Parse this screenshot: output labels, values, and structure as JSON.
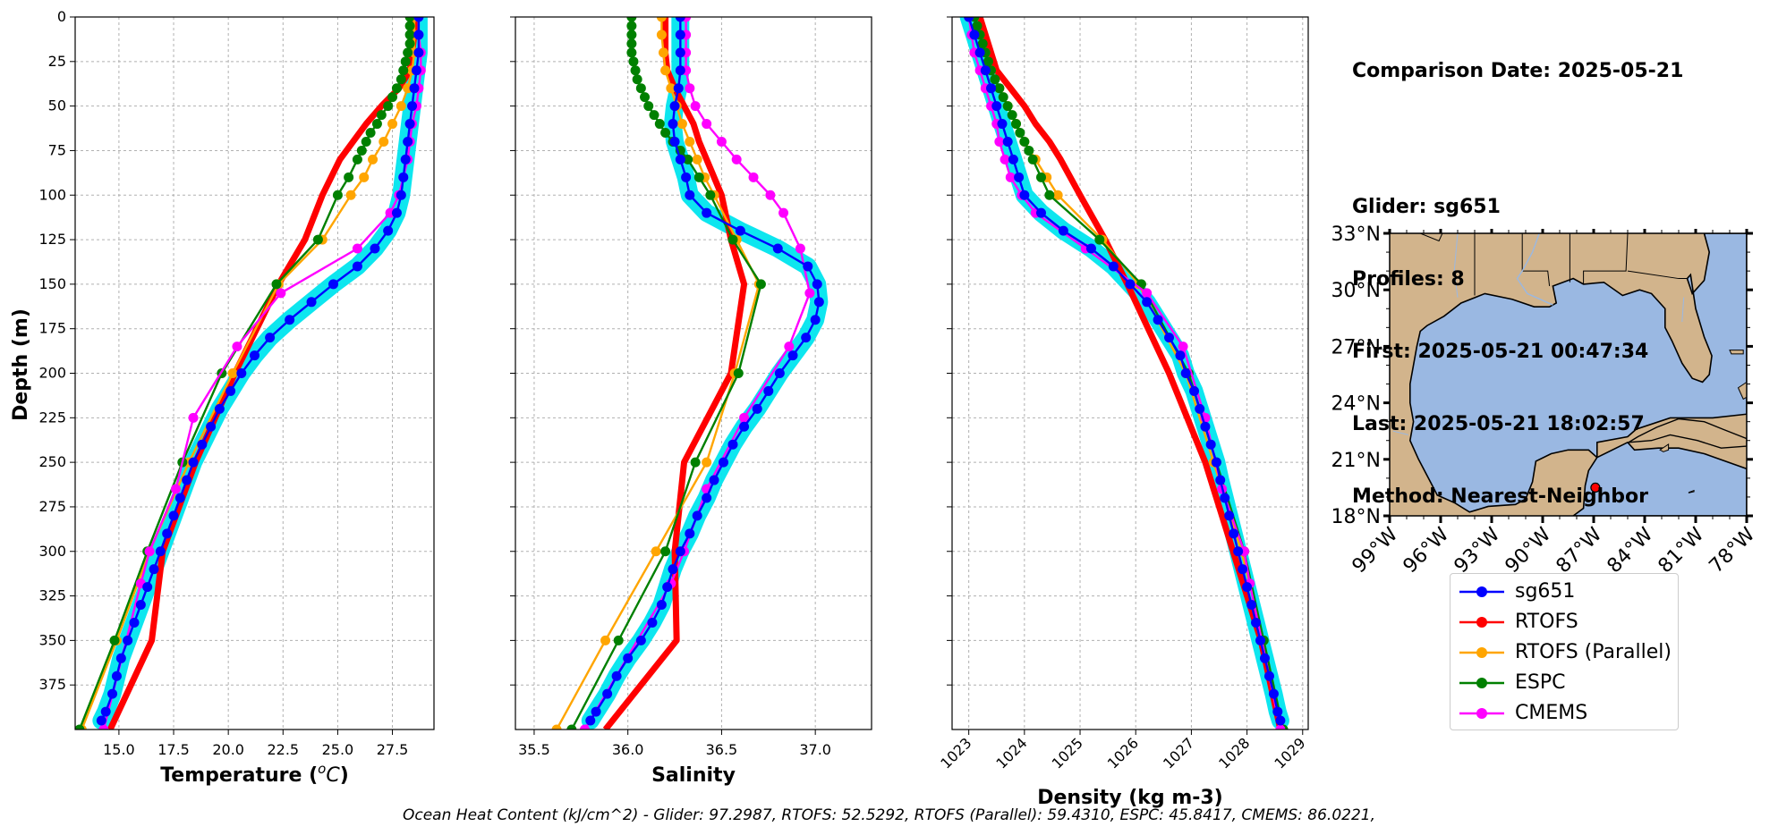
{
  "info": {
    "comparison_date": "Comparison Date: 2025-05-21",
    "glider": "Glider: sg651",
    "profiles": "Profiles: 8",
    "first": "First: 2025-05-21 00:47:34",
    "last": "Last: 2025-05-21 18:02:57",
    "method": "Method: Nearest-Neighbor"
  },
  "ohc_text": "Ocean Heat Content (kJ/cm^2) - Glider: 97.2987,  RTOFS: 52.5292,  RTOFS (Parallel): 59.4310,  ESPC: 45.8417,  CMEMS: 86.0221,",
  "colors": {
    "sg651": "#0000ff",
    "sg651_band": "#00e5ee",
    "RTOFS": "#ff0000",
    "RTOFS (Parallel)": "#ffa500",
    "ESPC": "#008000",
    "CMEMS": "#ff00ff",
    "land": "#d2b48c",
    "ocean": "#9ab8e2",
    "grid": "#b0b0b0"
  },
  "legend": [
    "sg651",
    "RTOFS",
    "RTOFS (Parallel)",
    "ESPC",
    "CMEMS"
  ],
  "chart_data": [
    {
      "type": "line",
      "xlabel": "Temperature ($^oC$)",
      "ylabel": "Depth (m)",
      "xlim": [
        13.0,
        29.4
      ],
      "ylim": [
        400,
        0
      ],
      "xticks": [
        "15.0",
        "17.5",
        "20.0",
        "22.5",
        "25.0",
        "27.5"
      ],
      "yticks": [
        "0",
        "25",
        "50",
        "75",
        "100",
        "125",
        "150",
        "175",
        "200",
        "225",
        "250",
        "275",
        "300",
        "325",
        "350",
        "375"
      ],
      "grid": true,
      "series": [
        {
          "name": "sg651",
          "depth": [
            0,
            10,
            20,
            30,
            40,
            50,
            60,
            70,
            80,
            90,
            100,
            110,
            120,
            130,
            140,
            150,
            160,
            170,
            180,
            190,
            200,
            210,
            220,
            230,
            240,
            250,
            260,
            270,
            280,
            290,
            300,
            310,
            320,
            330,
            340,
            350,
            360,
            370,
            380,
            390,
            395
          ],
          "values": [
            28.7,
            28.7,
            28.7,
            28.6,
            28.5,
            28.4,
            28.3,
            28.2,
            28.1,
            28.0,
            27.9,
            27.7,
            27.3,
            26.7,
            25.9,
            24.8,
            23.8,
            22.8,
            21.9,
            21.2,
            20.6,
            20.1,
            19.6,
            19.2,
            18.8,
            18.4,
            18.1,
            17.8,
            17.5,
            17.2,
            16.9,
            16.6,
            16.3,
            16.0,
            15.7,
            15.4,
            15.1,
            14.9,
            14.7,
            14.4,
            14.2
          ]
        },
        {
          "name": "RTOFS",
          "depth": [
            0,
            10,
            20,
            30,
            40,
            50,
            60,
            70,
            80,
            100,
            125,
            150,
            200,
            250,
            300,
            350,
            400
          ],
          "values": [
            28.5,
            28.5,
            28.4,
            28.3,
            27.8,
            27.0,
            26.3,
            25.7,
            25.1,
            24.3,
            23.5,
            22.3,
            20.3,
            18.5,
            17.0,
            16.5,
            14.6
          ]
        },
        {
          "name": "RTOFS (Parallel)",
          "depth": [
            0,
            10,
            20,
            30,
            40,
            50,
            60,
            70,
            80,
            90,
            100,
            125,
            150,
            200,
            250,
            300,
            350,
            400
          ],
          "values": [
            28.5,
            28.5,
            28.5,
            28.4,
            28.2,
            27.9,
            27.5,
            27.1,
            26.6,
            26.2,
            25.6,
            24.3,
            22.3,
            20.2,
            18.2,
            16.4,
            14.9,
            13.3
          ]
        },
        {
          "name": "ESPC",
          "depth": [
            0,
            5,
            10,
            15,
            20,
            25,
            30,
            35,
            40,
            45,
            50,
            55,
            60,
            65,
            70,
            75,
            80,
            90,
            100,
            125,
            150,
            200,
            250,
            300,
            350,
            400
          ],
          "values": [
            28.3,
            28.3,
            28.3,
            28.3,
            28.2,
            28.1,
            28.0,
            27.9,
            27.7,
            27.5,
            27.3,
            27.0,
            26.8,
            26.5,
            26.3,
            26.1,
            25.9,
            25.5,
            25.0,
            24.1,
            22.2,
            19.7,
            17.9,
            16.3,
            14.8,
            13.2
          ]
        },
        {
          "name": "CMEMS",
          "depth": [
            0,
            10,
            20,
            30,
            40,
            50,
            60,
            70,
            80,
            90,
            100,
            110,
            130,
            155,
            185,
            225,
            265,
            300,
            318,
            400
          ],
          "values": [
            28.7,
            28.7,
            28.8,
            28.8,
            28.7,
            28.6,
            28.4,
            28.3,
            28.2,
            28.0,
            27.8,
            27.4,
            25.9,
            22.4,
            20.4,
            18.4,
            17.6,
            16.4,
            16.0,
            14.3
          ]
        }
      ]
    },
    {
      "type": "line",
      "xlabel": "Salinity",
      "xlim": [
        35.4,
        37.3
      ],
      "ylim": [
        400,
        0
      ],
      "xticks": [
        "35.5",
        "36.0",
        "36.5",
        "37.0"
      ],
      "grid": true,
      "series": [
        {
          "name": "sg651",
          "depth": [
            0,
            10,
            20,
            30,
            40,
            50,
            60,
            70,
            80,
            90,
            100,
            110,
            120,
            130,
            140,
            150,
            160,
            170,
            180,
            190,
            200,
            210,
            220,
            230,
            240,
            250,
            260,
            270,
            280,
            290,
            300,
            310,
            320,
            330,
            340,
            350,
            360,
            370,
            380,
            390,
            395
          ],
          "values": [
            36.28,
            36.28,
            36.28,
            36.28,
            36.27,
            36.25,
            36.24,
            36.25,
            36.28,
            36.31,
            36.33,
            36.42,
            36.6,
            36.8,
            36.96,
            37.01,
            37.02,
            37.0,
            36.95,
            36.88,
            36.81,
            36.75,
            36.69,
            36.62,
            36.56,
            36.51,
            36.46,
            36.42,
            36.37,
            36.33,
            36.28,
            36.24,
            36.21,
            36.18,
            36.13,
            36.07,
            36.0,
            35.94,
            35.89,
            35.83,
            35.8
          ]
        },
        {
          "name": "RTOFS",
          "depth": [
            0,
            10,
            20,
            30,
            40,
            50,
            60,
            70,
            80,
            100,
            125,
            150,
            200,
            250,
            300,
            350,
            400
          ],
          "values": [
            36.2,
            36.2,
            36.2,
            36.21,
            36.25,
            36.3,
            36.35,
            36.38,
            36.42,
            36.5,
            36.55,
            36.62,
            36.55,
            36.3,
            36.25,
            36.26,
            35.88
          ]
        },
        {
          "name": "RTOFS (Parallel)",
          "depth": [
            0,
            10,
            20,
            30,
            40,
            50,
            60,
            70,
            80,
            90,
            100,
            125,
            150,
            200,
            250,
            300,
            350,
            400
          ],
          "values": [
            36.18,
            36.18,
            36.19,
            36.2,
            36.23,
            36.26,
            36.29,
            36.33,
            36.37,
            36.41,
            36.46,
            36.58,
            36.7,
            36.57,
            36.42,
            36.15,
            35.88,
            35.62
          ]
        },
        {
          "name": "ESPC",
          "depth": [
            0,
            5,
            10,
            15,
            20,
            25,
            30,
            35,
            40,
            45,
            50,
            55,
            60,
            65,
            70,
            75,
            80,
            90,
            100,
            125,
            150,
            200,
            250,
            300,
            350,
            400
          ],
          "values": [
            36.02,
            36.02,
            36.02,
            36.02,
            36.02,
            36.03,
            36.04,
            36.05,
            36.07,
            36.09,
            36.11,
            36.14,
            36.17,
            36.2,
            36.24,
            36.28,
            36.32,
            36.38,
            36.44,
            36.56,
            36.71,
            36.59,
            36.36,
            36.2,
            35.95,
            35.7
          ]
        },
        {
          "name": "CMEMS",
          "depth": [
            0,
            10,
            20,
            30,
            40,
            50,
            60,
            70,
            80,
            90,
            100,
            110,
            130,
            155,
            185,
            225,
            265,
            300,
            318,
            400
          ],
          "values": [
            36.31,
            36.31,
            36.31,
            36.31,
            36.33,
            36.36,
            36.42,
            36.5,
            36.58,
            36.67,
            36.76,
            36.83,
            36.92,
            36.97,
            36.86,
            36.62,
            36.42,
            36.3,
            36.23,
            35.77
          ]
        }
      ]
    },
    {
      "type": "line",
      "xlabel": "Density (kg m-3)",
      "xlim": [
        1022.7,
        1029.1
      ],
      "ylim": [
        400,
        0
      ],
      "xticks": [
        "1023",
        "1024",
        "1025",
        "1026",
        "1027",
        "1028",
        "1029"
      ],
      "grid": true,
      "series": [
        {
          "name": "sg651",
          "depth": [
            0,
            10,
            20,
            30,
            40,
            50,
            60,
            70,
            80,
            90,
            100,
            110,
            120,
            130,
            140,
            150,
            160,
            170,
            180,
            190,
            200,
            210,
            220,
            230,
            240,
            250,
            260,
            270,
            280,
            290,
            300,
            310,
            320,
            330,
            340,
            350,
            360,
            370,
            380,
            390,
            395
          ],
          "values": [
            1023.0,
            1023.1,
            1023.2,
            1023.3,
            1023.4,
            1023.5,
            1023.6,
            1023.7,
            1023.8,
            1023.9,
            1024.0,
            1024.3,
            1024.7,
            1025.2,
            1025.6,
            1025.9,
            1026.2,
            1026.4,
            1026.6,
            1026.8,
            1026.9,
            1027.05,
            1027.15,
            1027.25,
            1027.35,
            1027.45,
            1027.52,
            1027.6,
            1027.68,
            1027.76,
            1027.84,
            1027.92,
            1028.0,
            1028.08,
            1028.16,
            1028.24,
            1028.32,
            1028.4,
            1028.48,
            1028.55,
            1028.6
          ]
        },
        {
          "name": "RTOFS",
          "depth": [
            0,
            10,
            20,
            30,
            40,
            50,
            60,
            70,
            80,
            100,
            125,
            150,
            200,
            250,
            300,
            350,
            400
          ],
          "values": [
            1023.2,
            1023.3,
            1023.4,
            1023.5,
            1023.75,
            1024.0,
            1024.2,
            1024.45,
            1024.65,
            1025.0,
            1025.45,
            1025.85,
            1026.6,
            1027.25,
            1027.75,
            1028.25,
            1028.6
          ]
        },
        {
          "name": "RTOFS (Parallel)",
          "depth": [
            0,
            10,
            20,
            30,
            40,
            50,
            60,
            70,
            80,
            90,
            100,
            125,
            150,
            200,
            250,
            300,
            350,
            400
          ],
          "values": [
            1023.1,
            1023.2,
            1023.3,
            1023.4,
            1023.55,
            1023.7,
            1023.85,
            1024.0,
            1024.2,
            1024.4,
            1024.6,
            1025.4,
            1026.05,
            1026.9,
            1027.4,
            1027.9,
            1028.3,
            1028.65
          ]
        },
        {
          "name": "ESPC",
          "depth": [
            0,
            5,
            10,
            15,
            20,
            25,
            30,
            35,
            40,
            45,
            50,
            55,
            60,
            65,
            70,
            75,
            80,
            90,
            100,
            125,
            150,
            200,
            250,
            300,
            350,
            400
          ],
          "values": [
            1023.1,
            1023.15,
            1023.2,
            1023.25,
            1023.3,
            1023.35,
            1023.4,
            1023.47,
            1023.55,
            1023.62,
            1023.7,
            1023.78,
            1023.85,
            1023.92,
            1024.0,
            1024.08,
            1024.15,
            1024.3,
            1024.45,
            1025.35,
            1026.1,
            1026.95,
            1027.45,
            1027.95,
            1028.3,
            1028.65
          ]
        },
        {
          "name": "CMEMS",
          "depth": [
            0,
            10,
            20,
            30,
            40,
            50,
            60,
            70,
            80,
            90,
            100,
            110,
            130,
            155,
            185,
            225,
            265,
            300,
            318,
            400
          ],
          "values": [
            1023.0,
            1023.05,
            1023.1,
            1023.2,
            1023.3,
            1023.4,
            1023.5,
            1023.55,
            1023.65,
            1023.75,
            1023.95,
            1024.2,
            1025.1,
            1026.2,
            1026.85,
            1027.25,
            1027.55,
            1027.95,
            1028.05,
            1028.6
          ]
        }
      ]
    }
  ],
  "map": {
    "lon_range": [
      -99,
      -78
    ],
    "lat_range": [
      18,
      33
    ],
    "xticks": [
      "99°W",
      "96°W",
      "93°W",
      "90°W",
      "87°W",
      "84°W",
      "81°W",
      "78°W"
    ],
    "yticks": [
      "33°N",
      "30°N",
      "27°N",
      "24°N",
      "21°N",
      "18°N"
    ],
    "glider_location": {
      "lon": -86.9,
      "lat": 19.5
    }
  }
}
